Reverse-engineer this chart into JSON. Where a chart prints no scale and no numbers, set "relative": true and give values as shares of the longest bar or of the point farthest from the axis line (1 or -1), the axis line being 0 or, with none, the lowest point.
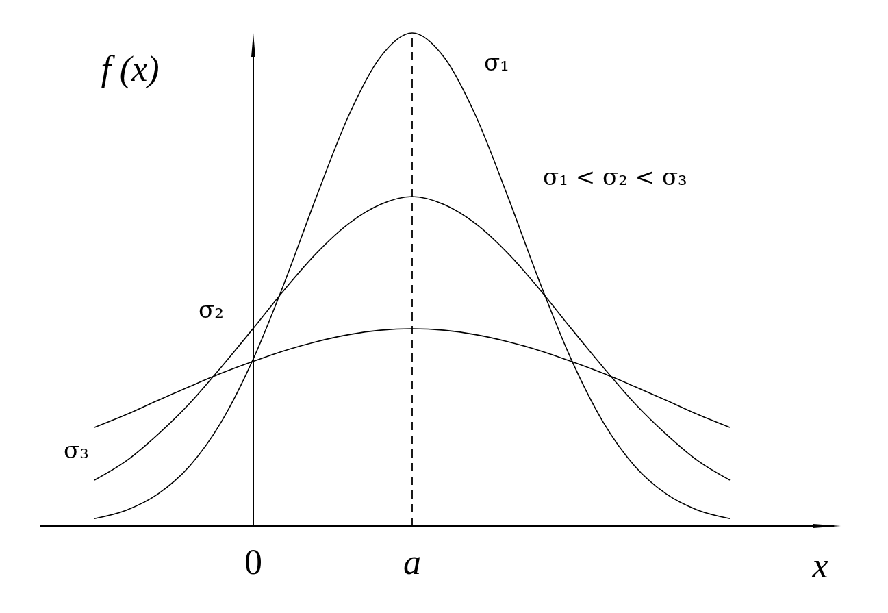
{
  "chart_data": {
    "type": "line",
    "relative": true,
    "xlabel": "x",
    "ylabel": "f (x)",
    "categories": [
      null,
      null,
      null,
      null,
      null,
      "0",
      null,
      null,
      null,
      null,
      "a",
      null,
      null,
      null,
      null,
      null,
      null,
      null,
      null,
      null,
      null
    ],
    "series": [
      {
        "name": "σ₁",
        "color": "#000000",
        "values": [
          0.015,
          0.032,
          0.065,
          0.122,
          0.212,
          0.339,
          0.497,
          0.67,
          0.832,
          0.951,
          1,
          0.951,
          0.832,
          0.67,
          0.497,
          0.339,
          0.212,
          0.122,
          0.065,
          0.032,
          0.015
        ]
      },
      {
        "name": "σ₂",
        "color": "#000000",
        "values": [
          0.093,
          0.132,
          0.186,
          0.249,
          0.323,
          0.401,
          0.481,
          0.554,
          0.613,
          0.652,
          0.668,
          0.652,
          0.613,
          0.554,
          0.481,
          0.401,
          0.323,
          0.249,
          0.186,
          0.132,
          0.093
        ]
      },
      {
        "name": "σ₃",
        "color": "#000000",
        "values": [
          0.2,
          0.226,
          0.255,
          0.283,
          0.31,
          0.334,
          0.356,
          0.374,
          0.388,
          0.397,
          0.4,
          0.397,
          0.388,
          0.374,
          0.356,
          0.334,
          0.31,
          0.283,
          0.255,
          0.226,
          0.2
        ]
      }
    ],
    "ref_lines": [
      {
        "axis": "x",
        "value": "a",
        "line_style": "dashed"
      }
    ],
    "annotations": [
      "σ₁ < σ₂ < σ₃"
    ],
    "line_style": "solid",
    "marker": "none",
    "grid": false,
    "legend": false
  }
}
